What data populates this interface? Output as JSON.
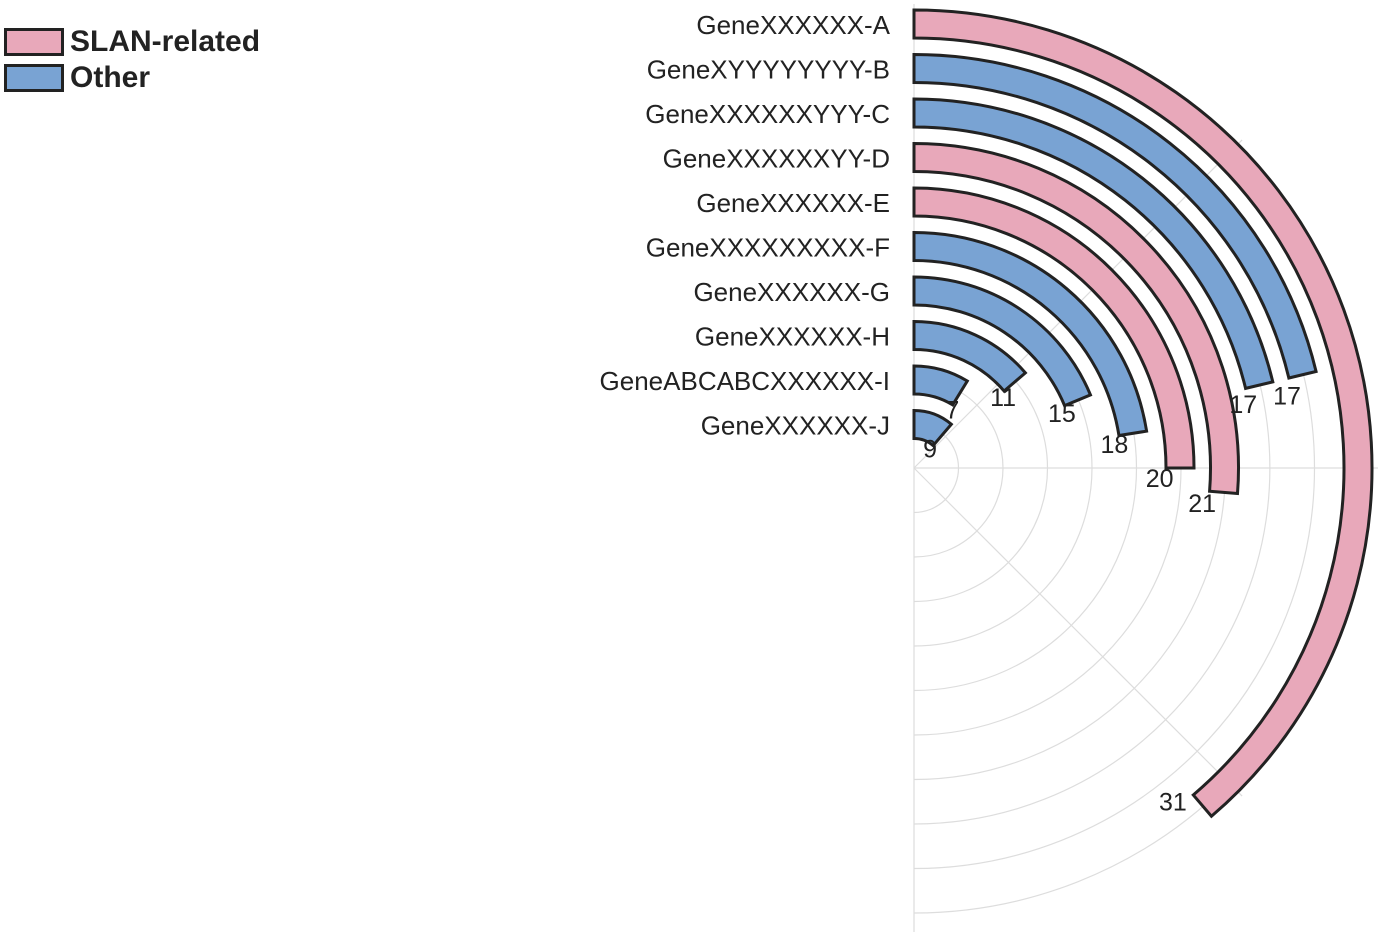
{
  "chart_data": {
    "type": "radial-bar",
    "title": "",
    "legend": {
      "placement": "top-left",
      "entries": [
        {
          "name": "SLAN-related",
          "color": "#e8a8ba"
        },
        {
          "name": "Other",
          "color": "#79a3d3"
        }
      ]
    },
    "categories": [
      "GeneXXXXXX-A",
      "GeneXYYYYYYYY-B",
      "GeneXXXXXXYYY-C",
      "GeneXXXXXXYY-D",
      "GeneXXXXXX-E",
      "GeneXXXXXXXXX-F",
      "GeneXXXXXX-G",
      "GeneXXXXXX-H",
      "GeneABCABCXXXXXX-I",
      "GeneXXXXXX-J"
    ],
    "values": [
      31,
      17,
      17,
      21,
      20,
      18,
      15,
      11,
      7,
      9
    ],
    "groups": [
      "SLAN-related",
      "Other",
      "Other",
      "SLAN-related",
      "SLAN-related",
      "Other",
      "Other",
      "Other",
      "Other",
      "Other"
    ],
    "value_labels": [
      "31",
      "17",
      "17",
      "21",
      "20",
      "18",
      "15",
      "11",
      "7",
      "9"
    ],
    "axis_max": 40,
    "angular_span_degrees": 180,
    "grid": true,
    "colors": {
      "SLAN-related": "#e8a8ba",
      "Other": "#79a3d3",
      "outline": "#222222",
      "grid": "#dddddd"
    }
  }
}
